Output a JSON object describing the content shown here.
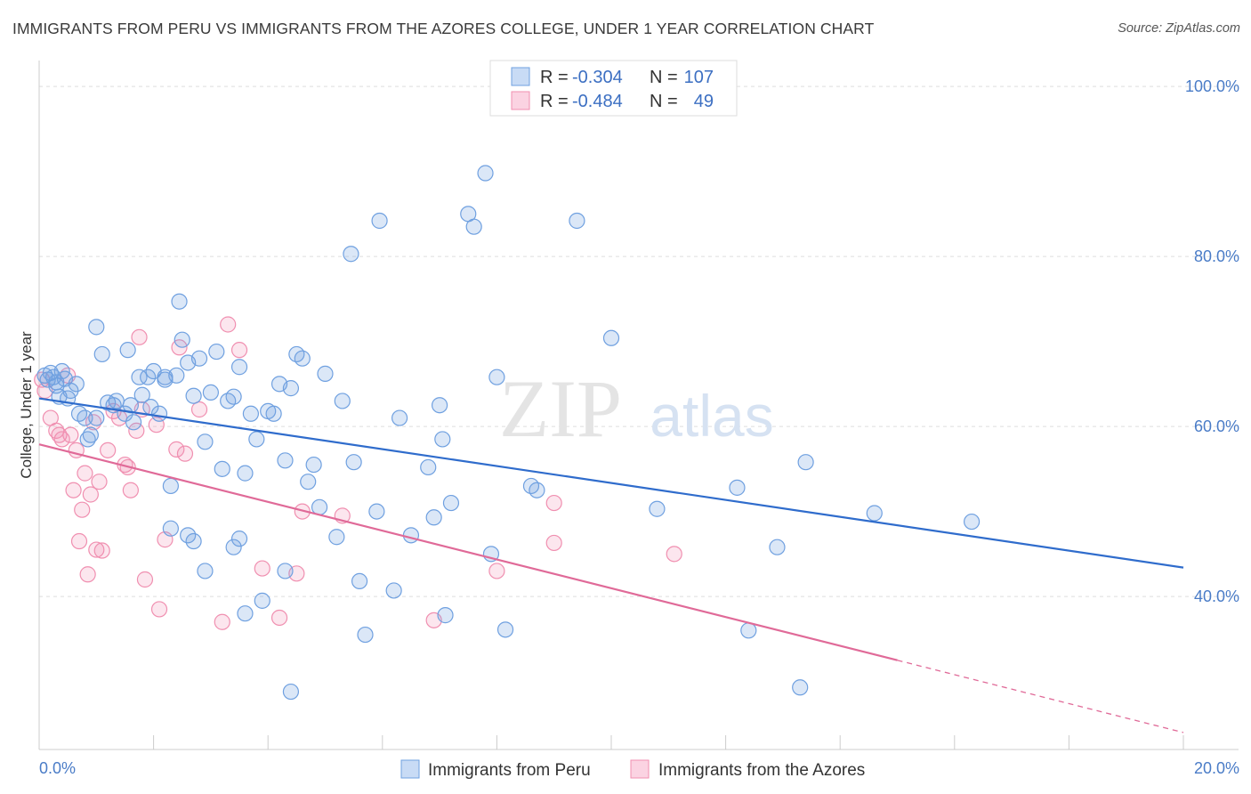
{
  "title": "IMMIGRANTS FROM PERU VS IMMIGRANTS FROM THE AZORES COLLEGE, UNDER 1 YEAR CORRELATION CHART",
  "source": "Source: ZipAtlas.com",
  "watermark": {
    "zip": "ZIP",
    "atlas": "atlas"
  },
  "colors": {
    "peru": "#6fa0e0",
    "azores": "#f08fb0",
    "peru_line": "#2f6ccc",
    "azores_line": "#e06a98",
    "tick": "#4a7cc7"
  },
  "legend_top": {
    "rows": [
      {
        "r_label": "R =",
        "r_value": "-0.304",
        "n_label": "N =",
        "n_value": "107"
      },
      {
        "r_label": "R =",
        "r_value": "-0.484",
        "n_label": "N =",
        "n_value": "49"
      }
    ]
  },
  "legend_bottom": [
    {
      "label": "Immigrants from Peru"
    },
    {
      "label": "Immigrants from the Azores"
    }
  ],
  "chart_data": {
    "type": "scatter",
    "title": "IMMIGRANTS FROM PERU VS IMMIGRANTS FROM THE AZORES COLLEGE, UNDER 1 YEAR CORRELATION CHART",
    "xlabel": "",
    "ylabel": "College, Under 1 year",
    "xlim": [
      0,
      20
    ],
    "ylim": [
      22,
      102
    ],
    "x_tick_labels": [
      "0.0%",
      "20.0%"
    ],
    "y_ticks": [
      40,
      60,
      80,
      100
    ],
    "y_tick_labels": [
      "40.0%",
      "60.0%",
      "80.0%",
      "100.0%"
    ],
    "grid": "horizontal dashed",
    "legend_placement": "top-center",
    "series": [
      {
        "name": "Immigrants from Peru",
        "R": -0.304,
        "N": 107,
        "trend": {
          "x": [
            0,
            20
          ],
          "y": [
            63.3,
            43.4
          ]
        },
        "points": [
          [
            0.1,
            66
          ],
          [
            0.15,
            65.5
          ],
          [
            0.2,
            66.3
          ],
          [
            0.25,
            65.8
          ],
          [
            0.3,
            65.2
          ],
          [
            0.35,
            63.5
          ],
          [
            0.4,
            66.5
          ],
          [
            0.45,
            65.6
          ],
          [
            0.55,
            64.2
          ],
          [
            0.65,
            65
          ],
          [
            0.7,
            61.5
          ],
          [
            0.8,
            61
          ],
          [
            0.85,
            58.5
          ],
          [
            0.9,
            59
          ],
          [
            1.0,
            71.7
          ],
          [
            1.1,
            68.5
          ],
          [
            1.2,
            62.8
          ],
          [
            1.3,
            62.5
          ],
          [
            1.35,
            63
          ],
          [
            1.55,
            69
          ],
          [
            1.6,
            62.5
          ],
          [
            1.65,
            60.5
          ],
          [
            1.75,
            65.8
          ],
          [
            1.8,
            63.7
          ],
          [
            1.9,
            65.8
          ],
          [
            1.95,
            62.3
          ],
          [
            2.0,
            66.5
          ],
          [
            2.1,
            61.5
          ],
          [
            2.2,
            65.8
          ],
          [
            2.3,
            53
          ],
          [
            2.4,
            66
          ],
          [
            2.45,
            74.7
          ],
          [
            2.5,
            70.2
          ],
          [
            2.6,
            67.5
          ],
          [
            2.7,
            63.6
          ],
          [
            2.8,
            68
          ],
          [
            2.9,
            58.2
          ],
          [
            3.0,
            64
          ],
          [
            3.1,
            68.8
          ],
          [
            3.2,
            55
          ],
          [
            3.3,
            63
          ],
          [
            3.4,
            63.5
          ],
          [
            3.5,
            67
          ],
          [
            3.6,
            54.5
          ],
          [
            3.7,
            61.5
          ],
          [
            3.8,
            58.5
          ],
          [
            4.0,
            61.8
          ],
          [
            4.1,
            61.5
          ],
          [
            4.2,
            65
          ],
          [
            4.3,
            56
          ],
          [
            4.4,
            64.5
          ],
          [
            4.5,
            68.5
          ],
          [
            4.6,
            68
          ],
          [
            4.7,
            53.5
          ],
          [
            4.8,
            55.5
          ],
          [
            4.9,
            50.5
          ],
          [
            5.0,
            66.2
          ],
          [
            5.2,
            47
          ],
          [
            5.3,
            63
          ],
          [
            5.45,
            80.3
          ],
          [
            5.5,
            55.8
          ],
          [
            5.6,
            41.8
          ],
          [
            5.7,
            35.5
          ],
          [
            5.9,
            50
          ],
          [
            5.95,
            84.2
          ],
          [
            6.2,
            40.7
          ],
          [
            6.3,
            61
          ],
          [
            6.5,
            47.2
          ],
          [
            6.8,
            55.2
          ],
          [
            6.9,
            49.3
          ],
          [
            7.0,
            62.5
          ],
          [
            7.05,
            58.5
          ],
          [
            7.1,
            37.8
          ],
          [
            7.2,
            51
          ],
          [
            7.5,
            85
          ],
          [
            7.6,
            83.5
          ],
          [
            7.8,
            89.8
          ],
          [
            7.9,
            45
          ],
          [
            8.0,
            65.8
          ],
          [
            8.15,
            36.1
          ],
          [
            8.6,
            53
          ],
          [
            8.7,
            52.5
          ],
          [
            9.4,
            84.2
          ],
          [
            10.0,
            70.4
          ],
          [
            10.8,
            50.3
          ],
          [
            12.2,
            52.8
          ],
          [
            12.4,
            36
          ],
          [
            12.9,
            45.8
          ],
          [
            13.3,
            29.3
          ],
          [
            13.4,
            55.8
          ],
          [
            14.6,
            49.8
          ],
          [
            16.3,
            48.8
          ],
          [
            2.3,
            48
          ],
          [
            2.6,
            47.2
          ],
          [
            2.7,
            46.5
          ],
          [
            2.9,
            43
          ],
          [
            3.4,
            45.8
          ],
          [
            3.5,
            46.8
          ],
          [
            3.6,
            38
          ],
          [
            3.9,
            39.5
          ],
          [
            4.3,
            43
          ],
          [
            4.4,
            28.8
          ],
          [
            1.0,
            61
          ],
          [
            1.5,
            61.5
          ],
          [
            2.2,
            65.5
          ],
          [
            0.3,
            64.8
          ],
          [
            0.5,
            63.3
          ]
        ]
      },
      {
        "name": "Immigrants from the Azores",
        "R": -0.484,
        "N": 49,
        "trend": {
          "x": [
            0,
            15
          ],
          "y": [
            57.9,
            32.5
          ]
        },
        "trend_dashed": {
          "x": [
            15,
            20
          ],
          "y": [
            32.5,
            24.0
          ]
        },
        "points": [
          [
            0.05,
            65.5
          ],
          [
            0.1,
            64.2
          ],
          [
            0.2,
            61
          ],
          [
            0.3,
            59.5
          ],
          [
            0.35,
            59
          ],
          [
            0.4,
            58.5
          ],
          [
            0.5,
            66
          ],
          [
            0.55,
            59
          ],
          [
            0.6,
            52.5
          ],
          [
            0.65,
            57.2
          ],
          [
            0.7,
            46.5
          ],
          [
            0.75,
            50.2
          ],
          [
            0.8,
            54.5
          ],
          [
            0.85,
            42.6
          ],
          [
            0.9,
            52
          ],
          [
            0.95,
            60.5
          ],
          [
            1.0,
            45.5
          ],
          [
            1.05,
            53.5
          ],
          [
            1.1,
            45.4
          ],
          [
            1.2,
            57.2
          ],
          [
            1.3,
            61.8
          ],
          [
            1.4,
            61
          ],
          [
            1.5,
            55.5
          ],
          [
            1.55,
            55.2
          ],
          [
            1.6,
            52.5
          ],
          [
            1.7,
            59.5
          ],
          [
            1.75,
            70.5
          ],
          [
            1.8,
            62
          ],
          [
            1.85,
            42
          ],
          [
            2.05,
            60.2
          ],
          [
            2.1,
            38.5
          ],
          [
            2.2,
            46.7
          ],
          [
            2.4,
            57.3
          ],
          [
            2.45,
            69.3
          ],
          [
            2.55,
            56.8
          ],
          [
            2.8,
            62
          ],
          [
            3.2,
            37
          ],
          [
            3.3,
            72
          ],
          [
            3.5,
            69
          ],
          [
            3.9,
            43.3
          ],
          [
            4.2,
            37.5
          ],
          [
            4.5,
            42.7
          ],
          [
            4.6,
            50
          ],
          [
            5.3,
            49.5
          ],
          [
            6.9,
            37.2
          ],
          [
            8.0,
            43
          ],
          [
            9.0,
            51
          ],
          [
            9.0,
            46.3
          ],
          [
            11.1,
            45
          ]
        ]
      }
    ]
  }
}
